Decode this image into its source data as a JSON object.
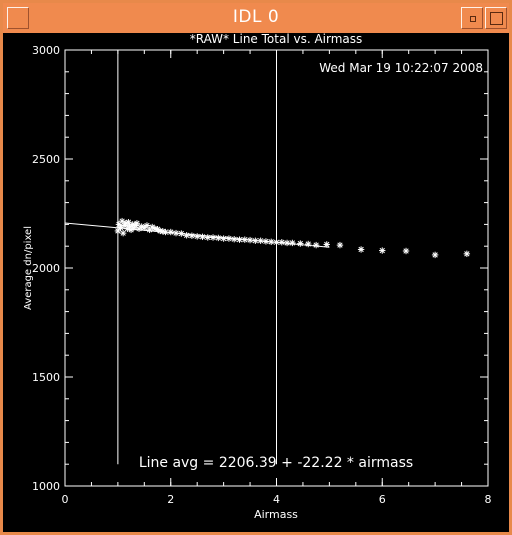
{
  "window": {
    "title": "IDL 0",
    "colors": {
      "frame": "#f08a4e",
      "plot_bg": "#000000",
      "ink": "#ffffff"
    }
  },
  "plot": {
    "annotation": "Line avg = 2206.39 + -22.22 * airmass"
  },
  "chart_data": {
    "type": "scatter",
    "title": "*RAW* Line Total vs. Airmass",
    "subtitle": "Wed Mar 19 10:22:07 2008",
    "xlabel": "Airmass",
    "ylabel": "Average dn/pixel",
    "xlim": [
      0,
      8
    ],
    "ylim": [
      1000,
      3000
    ],
    "x_ticks": [
      "0",
      "2",
      "4",
      "6",
      "8"
    ],
    "y_ticks": [
      "1000",
      "1500",
      "2000",
      "2500",
      "3000"
    ],
    "vertical_lines_x": [
      1.0,
      4.0
    ],
    "fit_line": {
      "intercept": 2206.39,
      "slope": -22.22,
      "x_range": [
        0,
        5.0
      ]
    },
    "series": [
      {
        "marker": "asterisk",
        "points": [
          [
            1.0,
            2170
          ],
          [
            1.02,
            2200
          ],
          [
            1.05,
            2185
          ],
          [
            1.08,
            2215
          ],
          [
            1.1,
            2160
          ],
          [
            1.12,
            2195
          ],
          [
            1.15,
            2205
          ],
          [
            1.18,
            2180
          ],
          [
            1.2,
            2210
          ],
          [
            1.22,
            2190
          ],
          [
            1.25,
            2175
          ],
          [
            1.28,
            2200
          ],
          [
            1.3,
            2185
          ],
          [
            1.33,
            2195
          ],
          [
            1.36,
            2205
          ],
          [
            1.4,
            2180
          ],
          [
            1.45,
            2190
          ],
          [
            1.5,
            2185
          ],
          [
            1.55,
            2195
          ],
          [
            1.6,
            2175
          ],
          [
            1.65,
            2188
          ],
          [
            1.7,
            2180
          ],
          [
            1.75,
            2178
          ],
          [
            1.8,
            2170
          ],
          [
            1.85,
            2168
          ],
          [
            1.9,
            2165
          ],
          [
            2.0,
            2165
          ],
          [
            2.1,
            2160
          ],
          [
            2.2,
            2158
          ],
          [
            2.3,
            2150
          ],
          [
            2.4,
            2148
          ],
          [
            2.5,
            2145
          ],
          [
            2.6,
            2143
          ],
          [
            2.7,
            2140
          ],
          [
            2.8,
            2140
          ],
          [
            2.9,
            2138
          ],
          [
            3.0,
            2135
          ],
          [
            3.1,
            2135
          ],
          [
            3.2,
            2132
          ],
          [
            3.3,
            2130
          ],
          [
            3.4,
            2130
          ],
          [
            3.5,
            2128
          ],
          [
            3.6,
            2125
          ],
          [
            3.7,
            2125
          ],
          [
            3.8,
            2122
          ],
          [
            3.9,
            2120
          ],
          [
            4.0,
            2118
          ],
          [
            4.1,
            2118
          ],
          [
            4.2,
            2115
          ],
          [
            4.3,
            2115
          ],
          [
            4.45,
            2112
          ],
          [
            4.6,
            2110
          ],
          [
            4.75,
            2105
          ],
          [
            4.95,
            2108
          ],
          [
            5.2,
            2105
          ],
          [
            5.6,
            2085
          ],
          [
            6.0,
            2080
          ],
          [
            6.45,
            2078
          ],
          [
            7.0,
            2060
          ],
          [
            7.6,
            2065
          ]
        ]
      }
    ]
  }
}
